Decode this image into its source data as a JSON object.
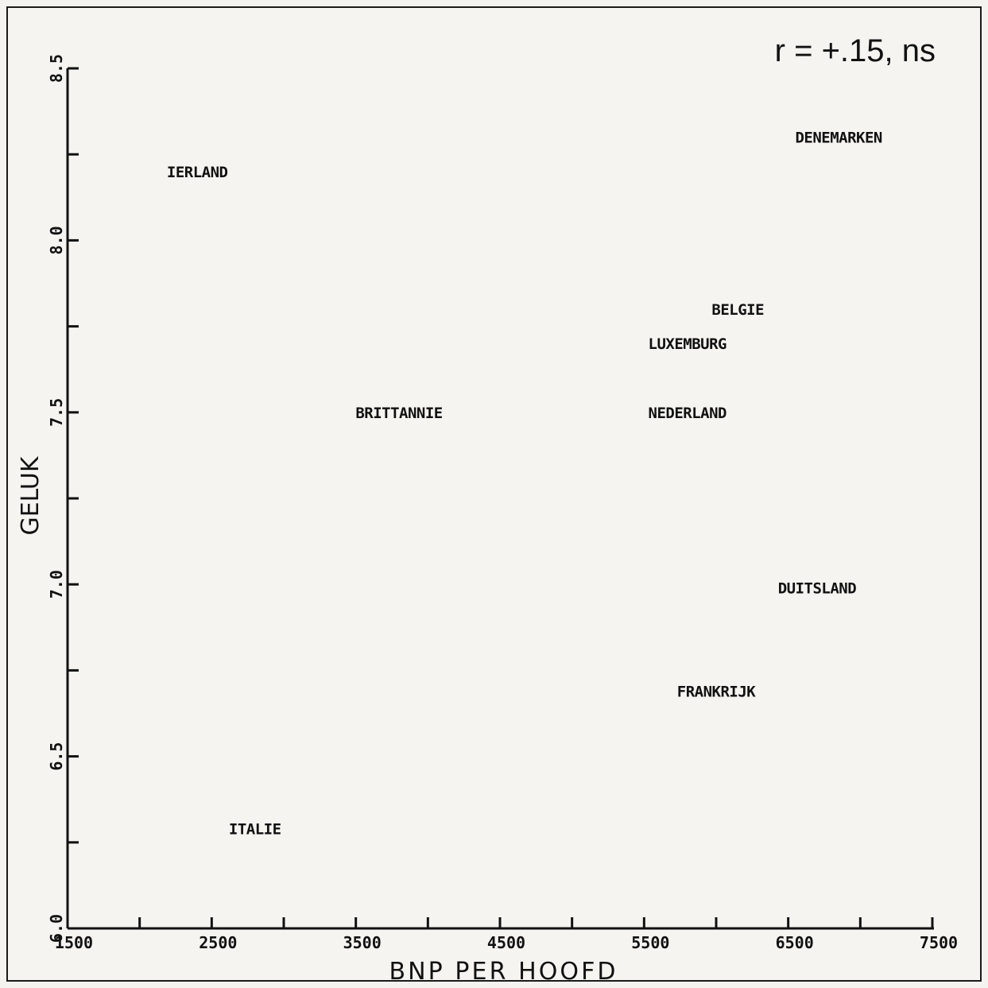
{
  "chart_data": {
    "type": "scatter",
    "annotation": "r = +.15, ns",
    "xlabel": "BNP PER HOOFD",
    "ylabel": "GELUK",
    "xlim": [
      1500,
      7500
    ],
    "ylim": [
      6.0,
      8.5
    ],
    "xticks": [
      1500,
      2000,
      2500,
      3000,
      3500,
      4000,
      4500,
      5000,
      5500,
      6000,
      6500,
      7000,
      7500
    ],
    "xtick_labels": [
      "1500",
      "2500",
      "3500",
      "4500",
      "5500",
      "6500",
      "7500"
    ],
    "xtick_label_values": [
      1500,
      2500,
      3500,
      4500,
      5500,
      6500,
      7500
    ],
    "yticks": [
      6.0,
      6.25,
      6.5,
      6.75,
      7.0,
      7.25,
      7.5,
      7.75,
      8.0,
      8.25,
      8.5
    ],
    "ytick_labels": [
      "6.0",
      "6.5",
      "7.0",
      "7.5",
      "8.0",
      "8.5"
    ],
    "ytick_label_values": [
      6.0,
      6.5,
      7.0,
      7.5,
      8.0,
      8.5
    ],
    "points": [
      {
        "label": "IERLAND",
        "x": 2400,
        "y": 8.2
      },
      {
        "label": "DENEMARKEN",
        "x": 6850,
        "y": 8.3
      },
      {
        "label": "BELGIE",
        "x": 6150,
        "y": 7.8
      },
      {
        "label": "LUXEMBURG",
        "x": 5800,
        "y": 7.7
      },
      {
        "label": "BRITTANNIE",
        "x": 3800,
        "y": 7.5
      },
      {
        "label": "NEDERLAND",
        "x": 5800,
        "y": 7.5
      },
      {
        "label": "DUITSLAND",
        "x": 6700,
        "y": 6.99
      },
      {
        "label": "FRANKRIJK",
        "x": 6000,
        "y": 6.69
      },
      {
        "label": "ITALIE",
        "x": 2800,
        "y": 6.29
      }
    ],
    "grid": false
  }
}
